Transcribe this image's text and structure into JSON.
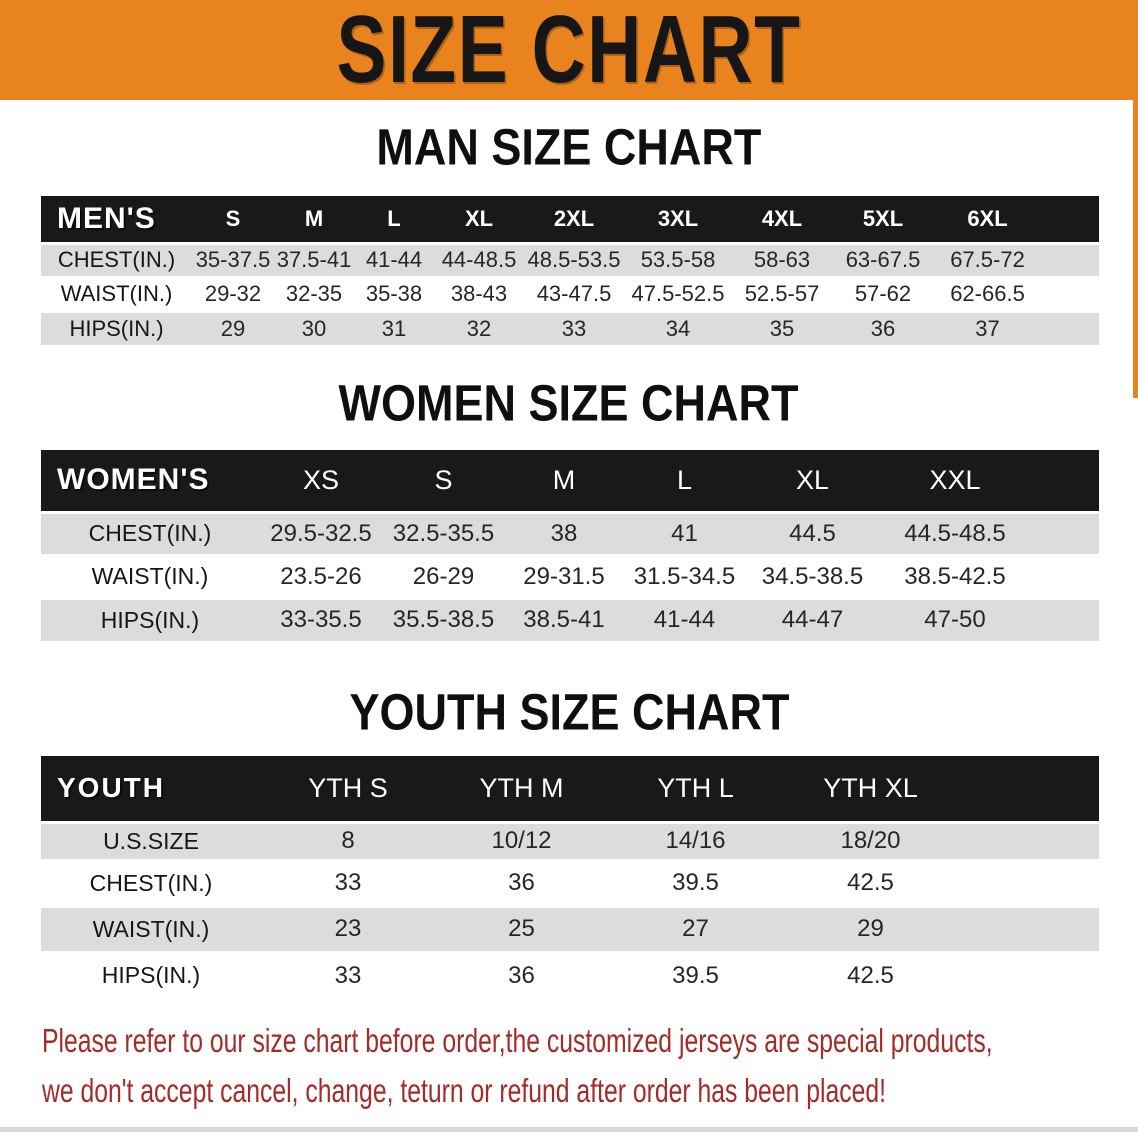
{
  "banner": {
    "title": "SIZE CHART"
  },
  "sections": [
    {
      "heading": "MAN SIZE CHART",
      "group_label": "MEN'S",
      "sizes": [
        "S",
        "M",
        "L",
        "XL",
        "2XL",
        "3XL",
        "4XL",
        "5XL",
        "6XL"
      ],
      "rows": [
        {
          "label": "CHEST(IN.)",
          "values": [
            "35-37.5",
            "37.5-41",
            "41-44",
            "44-48.5",
            "48.5-53.5",
            "53.5-58",
            "58-63",
            "63-67.5",
            "67.5-72"
          ]
        },
        {
          "label": "WAIST(IN.)",
          "values": [
            "29-32",
            "32-35",
            "35-38",
            "38-43",
            "43-47.5",
            "47.5-52.5",
            "52.5-57",
            "57-62",
            "62-66.5"
          ]
        },
        {
          "label": "HIPS(IN.)",
          "values": [
            "29",
            "30",
            "31",
            "32",
            "33",
            "34",
            "35",
            "36",
            "37"
          ]
        }
      ]
    },
    {
      "heading": "WOMEN SIZE CHART",
      "group_label": "WOMEN'S",
      "sizes": [
        "XS",
        "S",
        "M",
        "L",
        "XL",
        "XXL"
      ],
      "rows": [
        {
          "label": "CHEST(IN.)",
          "values": [
            "29.5-32.5",
            "32.5-35.5",
            "38",
            "41",
            "44.5",
            "44.5-48.5"
          ]
        },
        {
          "label": "WAIST(IN.)",
          "values": [
            "23.5-26",
            "26-29",
            "29-31.5",
            "31.5-34.5",
            "34.5-38.5",
            "38.5-42.5"
          ]
        },
        {
          "label": "HIPS(IN.)",
          "values": [
            "33-35.5",
            "35.5-38.5",
            "38.5-41",
            "41-44",
            "44-47",
            "47-50"
          ]
        }
      ]
    },
    {
      "heading": "YOUTH SIZE CHART",
      "group_label": "YOUTH",
      "sizes": [
        "YTH S",
        "YTH M",
        "YTH L",
        "YTH XL"
      ],
      "rows": [
        {
          "label": "U.S.SIZE",
          "values": [
            "8",
            "10/12",
            "14/16",
            "18/20"
          ]
        },
        {
          "label": "CHEST(IN.)",
          "values": [
            "33",
            "36",
            "39.5",
            "42.5"
          ]
        },
        {
          "label": "WAIST(IN.)",
          "values": [
            "23",
            "25",
            "27",
            "29"
          ]
        },
        {
          "label": "HIPS(IN.)",
          "values": [
            "33",
            "36",
            "39.5",
            "42.5"
          ]
        }
      ]
    }
  ],
  "footnote": {
    "line1": "Please refer to our size chart before order,the customized jerseys are special products,",
    "line2": "we don't accept cancel, change, teturn or refund after order has been placed!"
  },
  "colors": {
    "banner_bg": "#E8831E",
    "header_bar": "#191919",
    "row_stripe": "#DCDCDC",
    "footnote_red": "#A62B28"
  }
}
